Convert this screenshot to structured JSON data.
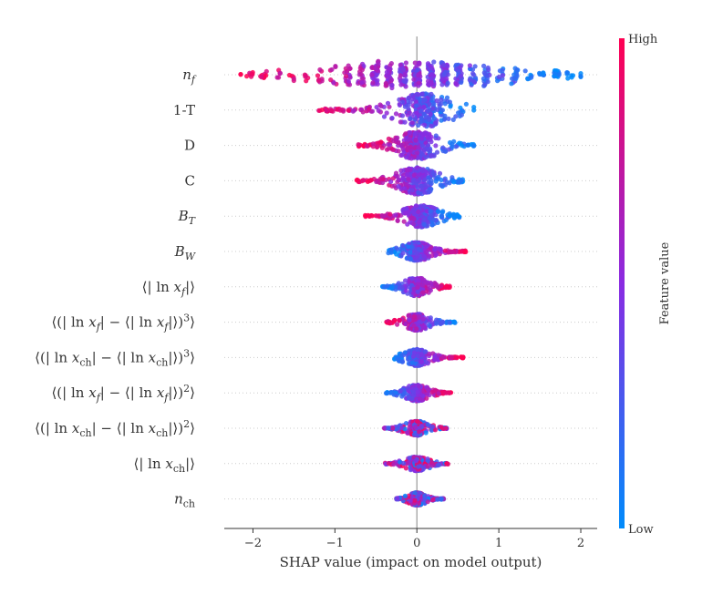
{
  "chart_data": {
    "type": "scatter",
    "subtype": "shap-beeswarm",
    "xlabel": "SHAP value (impact on model output)",
    "xlim": [
      -2.35,
      2.2
    ],
    "xticks": [
      -2,
      -1,
      0,
      1,
      2
    ],
    "xtick_labels": [
      "−2",
      "−1",
      "0",
      "1",
      "2"
    ],
    "zero_line": 0,
    "grid": false,
    "colorbar": {
      "label": "Feature value",
      "high_label": "High",
      "low_label": "Low",
      "high_color": "#ff0052",
      "mid_color": "#8a2be2",
      "low_color": "#008bfb"
    },
    "features": [
      {
        "name": "n_f",
        "tex": "n_f",
        "min": -2.15,
        "max": 2.0,
        "center": 0.0,
        "spread": 1.2,
        "width": 18,
        "skew": "high-negative",
        "lumpy": true
      },
      {
        "name": "1-T",
        "tex": "1-T",
        "min": -1.2,
        "max": 0.7,
        "center": 0.1,
        "spread": 0.35,
        "width": 18,
        "skew": "high-negative",
        "lumpy": false
      },
      {
        "name": "D",
        "tex": "D",
        "min": -0.72,
        "max": 0.72,
        "center": 0.0,
        "spread": 0.3,
        "width": 15,
        "skew": "high-negative",
        "lumpy": false
      },
      {
        "name": "C",
        "tex": "C",
        "min": -0.75,
        "max": 0.57,
        "center": 0.0,
        "spread": 0.28,
        "width": 15,
        "skew": "high-negative",
        "lumpy": false
      },
      {
        "name": "B_T",
        "tex": "B_T",
        "min": -0.63,
        "max": 0.52,
        "center": 0.05,
        "spread": 0.22,
        "width": 12,
        "skew": "high-negative",
        "lumpy": false
      },
      {
        "name": "B_W",
        "tex": "B_W",
        "min": -0.35,
        "max": 0.6,
        "center": 0.0,
        "spread": 0.18,
        "width": 10,
        "skew": "high-positive",
        "lumpy": false
      },
      {
        "name": "<|ln x_f|>",
        "tex": "⟨|ln x_f|⟩",
        "min": -0.42,
        "max": 0.42,
        "center": 0.0,
        "spread": 0.12,
        "width": 10,
        "skew": "high-positive",
        "lumpy": false
      },
      {
        "name": "<(|ln x_f| - <|ln x_f|>)^3>",
        "tex": "⟨(|ln x_f| − ⟨|ln x_f|⟩)^3⟩",
        "min": -0.38,
        "max": 0.47,
        "center": 0.0,
        "spread": 0.12,
        "width": 9,
        "skew": "high-negative",
        "lumpy": false
      },
      {
        "name": "<(|ln x_ch| - <|ln x_ch|>)^3>",
        "tex": "⟨(|ln x_ch| − ⟨|ln x_ch|⟩)^3⟩",
        "min": -0.28,
        "max": 0.57,
        "center": 0.0,
        "spread": 0.12,
        "width": 9,
        "skew": "high-positive",
        "lumpy": false
      },
      {
        "name": "<(|ln x_f| - <|ln x_f|>)^2>",
        "tex": "⟨(|ln x_f| − ⟨|ln x_f|⟩)^2⟩",
        "min": -0.38,
        "max": 0.42,
        "center": 0.0,
        "spread": 0.11,
        "width": 9,
        "skew": "high-positive",
        "lumpy": false
      },
      {
        "name": "<(|ln x_ch| - <|ln x_ch|>)^2>",
        "tex": "⟨(|ln x_ch| − ⟨|ln x_ch|⟩)^2⟩",
        "min": -0.4,
        "max": 0.37,
        "center": 0.0,
        "spread": 0.1,
        "width": 8,
        "skew": "mixed",
        "lumpy": false
      },
      {
        "name": "<|ln x_ch|>",
        "tex": "⟨|ln x_ch|⟩",
        "min": -0.4,
        "max": 0.38,
        "center": 0.0,
        "spread": 0.1,
        "width": 8,
        "skew": "mixed",
        "lumpy": false
      },
      {
        "name": "n_ch",
        "tex": "n_ch",
        "min": -0.25,
        "max": 0.33,
        "center": 0.0,
        "spread": 0.08,
        "width": 7,
        "skew": "mixed",
        "lumpy": false
      }
    ]
  }
}
